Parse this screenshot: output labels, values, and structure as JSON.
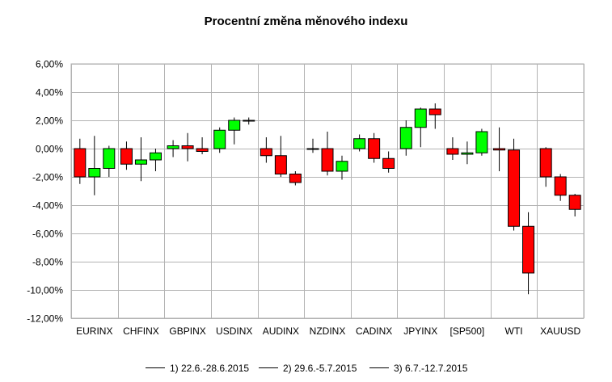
{
  "chart_data": {
    "type": "candlestick",
    "title": "Procentní změna měnového indexu",
    "ylim": [
      -12,
      6
    ],
    "yticks": [
      "6,00%",
      "4,00%",
      "2,00%",
      "0,00%",
      "-2,00%",
      "-4,00%",
      "-6,00%",
      "-8,00%",
      "-10,00%",
      "-12,00%"
    ],
    "grid": true,
    "legend_position": "bottom",
    "colors": {
      "up": "#00ff00",
      "down": "#ff0000",
      "grid": "#b3b3b3",
      "wick": "#000000"
    },
    "categories": [
      "EURINX",
      "CHFINX",
      "GBPINX",
      "USDINX",
      "AUDINX",
      "NZDINX",
      "CADINX",
      "JPYINX",
      "[SP500]",
      "WTI",
      "XAUUSD"
    ],
    "series": [
      {
        "name": "1) 22.6.-28.6.2015",
        "data": [
          {
            "open": 0.0,
            "close": -2.0,
            "high": 0.7,
            "low": -2.5
          },
          {
            "open": 0.0,
            "close": -1.1,
            "high": 0.5,
            "low": -1.5
          },
          {
            "open": 0.0,
            "close": 0.2,
            "high": 0.6,
            "low": -0.6
          },
          {
            "open": 0.0,
            "close": 1.3,
            "high": 1.5,
            "low": -0.3
          },
          {
            "open": 0.0,
            "close": -0.5,
            "high": 0.8,
            "low": -1.0
          },
          {
            "open": 0.0,
            "close": 0.0,
            "high": 0.7,
            "low": -0.3
          },
          {
            "open": 0.0,
            "close": 0.7,
            "high": 1.0,
            "low": -0.2
          },
          {
            "open": 0.0,
            "close": 1.5,
            "high": 2.0,
            "low": -0.5
          },
          {
            "open": 0.0,
            "close": -0.4,
            "high": 0.8,
            "low": -0.8
          },
          {
            "open": 0.0,
            "close": -0.1,
            "high": 1.5,
            "low": -1.6
          },
          {
            "open": 0.0,
            "close": -2.0,
            "high": 0.1,
            "low": -2.7
          }
        ]
      },
      {
        "name": "2) 29.6.-5.7.2015",
        "data": [
          {
            "open": -2.0,
            "close": -1.4,
            "high": 0.9,
            "low": -3.3
          },
          {
            "open": -1.1,
            "close": -0.8,
            "high": 0.8,
            "low": -2.3
          },
          {
            "open": 0.2,
            "close": 0.0,
            "high": 1.1,
            "low": -0.9
          },
          {
            "open": 1.3,
            "close": 2.0,
            "high": 2.2,
            "low": 0.3
          },
          {
            "open": -0.5,
            "close": -1.8,
            "high": 0.9,
            "low": -2.0
          },
          {
            "open": 0.0,
            "close": -1.6,
            "high": 1.2,
            "low": -1.9
          },
          {
            "open": 0.7,
            "close": -0.7,
            "high": 1.1,
            "low": -1.0
          },
          {
            "open": 1.5,
            "close": 2.8,
            "high": 2.9,
            "low": 0.1
          },
          {
            "open": -0.4,
            "close": -0.3,
            "high": 0.5,
            "low": -1.1
          },
          {
            "open": -0.1,
            "close": -5.5,
            "high": 0.7,
            "low": -5.8
          },
          {
            "open": -2.0,
            "close": -3.3,
            "high": -1.8,
            "low": -3.7
          }
        ]
      },
      {
        "name": "3) 6.7.-12.7.2015",
        "data": [
          {
            "open": -1.4,
            "close": 0.0,
            "high": 0.2,
            "low": -2.0
          },
          {
            "open": -0.8,
            "close": -0.3,
            "high": 0.0,
            "low": -1.6
          },
          {
            "open": 0.0,
            "close": -0.2,
            "high": 0.8,
            "low": -0.4
          },
          {
            "open": 2.0,
            "close": 2.0,
            "high": 2.2,
            "low": 1.7
          },
          {
            "open": -1.8,
            "close": -2.4,
            "high": -1.6,
            "low": -2.6
          },
          {
            "open": -1.6,
            "close": -0.9,
            "high": -0.5,
            "low": -2.2
          },
          {
            "open": -0.7,
            "close": -1.4,
            "high": -0.2,
            "low": -1.7
          },
          {
            "open": 2.8,
            "close": 2.4,
            "high": 3.2,
            "low": 1.4
          },
          {
            "open": -0.3,
            "close": 1.2,
            "high": 1.4,
            "low": -0.5
          },
          {
            "open": -5.5,
            "close": -8.8,
            "high": -4.5,
            "low": -10.3
          },
          {
            "open": -3.3,
            "close": -4.3,
            "high": -3.2,
            "low": -4.8
          }
        ]
      }
    ]
  }
}
